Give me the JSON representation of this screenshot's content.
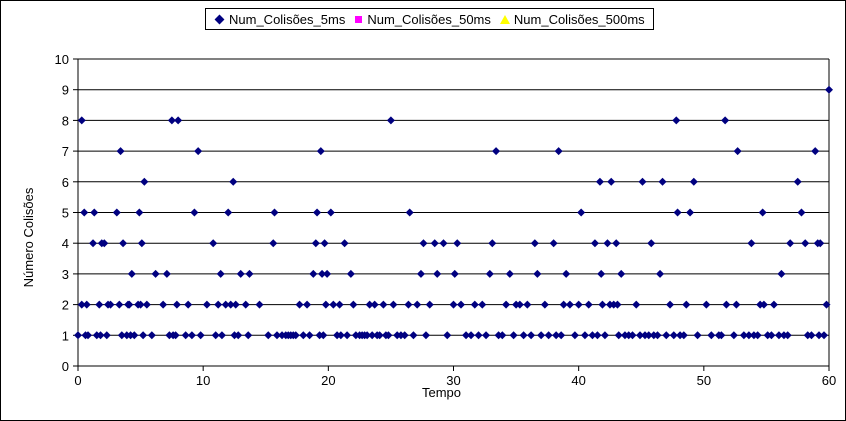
{
  "chart_data": {
    "type": "scatter",
    "title": "",
    "xlabel": "Tempo",
    "ylabel": "Número Colisões",
    "xlim": [
      0,
      60
    ],
    "ylim": [
      0,
      10
    ],
    "xticks": [
      0,
      10,
      20,
      30,
      40,
      50,
      60
    ],
    "yticks": [
      0,
      1,
      2,
      3,
      4,
      5,
      6,
      7,
      8,
      9,
      10
    ],
    "grid": "horizontal",
    "legend_position": "top",
    "series": [
      {
        "name": "Num_Colisões_5ms",
        "marker": "diamond",
        "color": "#000080",
        "points": [
          [
            0.0,
            1
          ],
          [
            0.3,
            8
          ],
          [
            0.3,
            2
          ],
          [
            0.5,
            5
          ],
          [
            0.6,
            1
          ],
          [
            0.7,
            2
          ],
          [
            0.8,
            1
          ],
          [
            1.2,
            4
          ],
          [
            1.3,
            5
          ],
          [
            1.5,
            1
          ],
          [
            1.7,
            2
          ],
          [
            1.8,
            1
          ],
          [
            1.9,
            4
          ],
          [
            2.1,
            4
          ],
          [
            2.3,
            1
          ],
          [
            2.4,
            2
          ],
          [
            2.6,
            2
          ],
          [
            3.1,
            5
          ],
          [
            3.3,
            2
          ],
          [
            3.4,
            7
          ],
          [
            3.5,
            1
          ],
          [
            3.6,
            4
          ],
          [
            3.9,
            1
          ],
          [
            4.0,
            2
          ],
          [
            4.1,
            2
          ],
          [
            4.2,
            1
          ],
          [
            4.3,
            3
          ],
          [
            4.5,
            1
          ],
          [
            4.8,
            2
          ],
          [
            4.9,
            5
          ],
          [
            5.0,
            2
          ],
          [
            5.1,
            4
          ],
          [
            5.2,
            1
          ],
          [
            5.3,
            6
          ],
          [
            5.5,
            2
          ],
          [
            5.9,
            1
          ],
          [
            6.2,
            3
          ],
          [
            6.8,
            2
          ],
          [
            7.1,
            3
          ],
          [
            7.3,
            1
          ],
          [
            7.5,
            8
          ],
          [
            7.6,
            1
          ],
          [
            7.8,
            1
          ],
          [
            7.9,
            2
          ],
          [
            8.0,
            8
          ],
          [
            8.6,
            1
          ],
          [
            8.8,
            2
          ],
          [
            9.1,
            1
          ],
          [
            9.3,
            5
          ],
          [
            9.6,
            7
          ],
          [
            9.8,
            1
          ],
          [
            10.3,
            2
          ],
          [
            10.8,
            4
          ],
          [
            11.0,
            1
          ],
          [
            11.2,
            2
          ],
          [
            11.4,
            3
          ],
          [
            11.5,
            1
          ],
          [
            11.8,
            2
          ],
          [
            12.0,
            5
          ],
          [
            12.2,
            2
          ],
          [
            12.4,
            6
          ],
          [
            12.5,
            1
          ],
          [
            12.6,
            2
          ],
          [
            12.8,
            1
          ],
          [
            13.0,
            3
          ],
          [
            13.4,
            2
          ],
          [
            13.6,
            1
          ],
          [
            13.7,
            3
          ],
          [
            14.5,
            2
          ],
          [
            15.2,
            1
          ],
          [
            15.6,
            4
          ],
          [
            15.7,
            5
          ],
          [
            15.9,
            1
          ],
          [
            16.3,
            1
          ],
          [
            16.6,
            1
          ],
          [
            16.8,
            1
          ],
          [
            17.0,
            1
          ],
          [
            17.2,
            1
          ],
          [
            17.4,
            1
          ],
          [
            17.7,
            2
          ],
          [
            18.0,
            1
          ],
          [
            18.3,
            2
          ],
          [
            18.5,
            1
          ],
          [
            18.8,
            3
          ],
          [
            19.0,
            4
          ],
          [
            19.1,
            5
          ],
          [
            19.3,
            1
          ],
          [
            19.4,
            7
          ],
          [
            19.5,
            3
          ],
          [
            19.6,
            1
          ],
          [
            19.7,
            4
          ],
          [
            19.8,
            2
          ],
          [
            19.9,
            3
          ],
          [
            20.2,
            5
          ],
          [
            20.4,
            2
          ],
          [
            20.7,
            1
          ],
          [
            20.9,
            2
          ],
          [
            21.0,
            1
          ],
          [
            21.3,
            4
          ],
          [
            21.5,
            1
          ],
          [
            21.8,
            3
          ],
          [
            22.0,
            2
          ],
          [
            22.2,
            1
          ],
          [
            22.5,
            1
          ],
          [
            22.7,
            1
          ],
          [
            22.9,
            1
          ],
          [
            23.1,
            1
          ],
          [
            23.3,
            2
          ],
          [
            23.5,
            1
          ],
          [
            23.7,
            2
          ],
          [
            23.9,
            1
          ],
          [
            24.1,
            1
          ],
          [
            24.4,
            2
          ],
          [
            24.6,
            1
          ],
          [
            24.8,
            1
          ],
          [
            25.0,
            8
          ],
          [
            25.2,
            2
          ],
          [
            25.5,
            1
          ],
          [
            25.8,
            1
          ],
          [
            26.1,
            1
          ],
          [
            26.4,
            2
          ],
          [
            26.5,
            5
          ],
          [
            26.8,
            1
          ],
          [
            27.1,
            2
          ],
          [
            27.4,
            3
          ],
          [
            27.6,
            4
          ],
          [
            27.8,
            1
          ],
          [
            28.1,
            2
          ],
          [
            28.5,
            4
          ],
          [
            28.7,
            3
          ],
          [
            29.2,
            4
          ],
          [
            29.5,
            1
          ],
          [
            30.0,
            2
          ],
          [
            30.1,
            3
          ],
          [
            30.3,
            4
          ],
          [
            30.6,
            2
          ],
          [
            31.0,
            1
          ],
          [
            31.4,
            1
          ],
          [
            31.7,
            2
          ],
          [
            32.0,
            1
          ],
          [
            32.3,
            2
          ],
          [
            32.6,
            1
          ],
          [
            32.9,
            3
          ],
          [
            33.1,
            4
          ],
          [
            33.4,
            7
          ],
          [
            33.6,
            1
          ],
          [
            33.9,
            1
          ],
          [
            34.2,
            2
          ],
          [
            34.5,
            3
          ],
          [
            34.8,
            1
          ],
          [
            35.0,
            2
          ],
          [
            35.3,
            2
          ],
          [
            35.6,
            1
          ],
          [
            35.9,
            2
          ],
          [
            36.2,
            1
          ],
          [
            36.5,
            4
          ],
          [
            36.7,
            3
          ],
          [
            37.0,
            1
          ],
          [
            37.3,
            2
          ],
          [
            37.6,
            1
          ],
          [
            38.0,
            4
          ],
          [
            38.2,
            1
          ],
          [
            38.4,
            7
          ],
          [
            38.6,
            1
          ],
          [
            38.8,
            2
          ],
          [
            39.0,
            3
          ],
          [
            39.3,
            2
          ],
          [
            39.7,
            1
          ],
          [
            40.0,
            2
          ],
          [
            40.2,
            5
          ],
          [
            40.5,
            1
          ],
          [
            40.8,
            2
          ],
          [
            41.1,
            1
          ],
          [
            41.3,
            4
          ],
          [
            41.5,
            1
          ],
          [
            41.7,
            6
          ],
          [
            41.8,
            3
          ],
          [
            41.9,
            2
          ],
          [
            42.1,
            1
          ],
          [
            42.3,
            4
          ],
          [
            42.5,
            2
          ],
          [
            42.6,
            6
          ],
          [
            42.8,
            2
          ],
          [
            43.0,
            4
          ],
          [
            43.1,
            2
          ],
          [
            43.2,
            1
          ],
          [
            43.4,
            3
          ],
          [
            43.7,
            1
          ],
          [
            44.0,
            1
          ],
          [
            44.3,
            1
          ],
          [
            44.6,
            2
          ],
          [
            44.9,
            1
          ],
          [
            45.1,
            6
          ],
          [
            45.3,
            1
          ],
          [
            45.6,
            1
          ],
          [
            45.8,
            4
          ],
          [
            46.0,
            1
          ],
          [
            46.3,
            1
          ],
          [
            46.5,
            3
          ],
          [
            46.7,
            6
          ],
          [
            47.0,
            1
          ],
          [
            47.3,
            2
          ],
          [
            47.6,
            1
          ],
          [
            47.8,
            8
          ],
          [
            47.9,
            5
          ],
          [
            48.1,
            1
          ],
          [
            48.4,
            1
          ],
          [
            48.6,
            2
          ],
          [
            48.9,
            5
          ],
          [
            49.2,
            6
          ],
          [
            49.5,
            1
          ],
          [
            50.2,
            2
          ],
          [
            50.6,
            1
          ],
          [
            51.2,
            1
          ],
          [
            51.4,
            1
          ],
          [
            51.7,
            8
          ],
          [
            51.8,
            2
          ],
          [
            52.4,
            1
          ],
          [
            52.6,
            2
          ],
          [
            52.7,
            7
          ],
          [
            53.2,
            1
          ],
          [
            53.6,
            1
          ],
          [
            53.8,
            4
          ],
          [
            54.0,
            1
          ],
          [
            54.3,
            1
          ],
          [
            54.5,
            2
          ],
          [
            54.7,
            5
          ],
          [
            54.8,
            2
          ],
          [
            55.1,
            1
          ],
          [
            55.4,
            1
          ],
          [
            55.6,
            2
          ],
          [
            56.0,
            1
          ],
          [
            56.2,
            3
          ],
          [
            56.4,
            1
          ],
          [
            56.7,
            1
          ],
          [
            56.9,
            4
          ],
          [
            57.5,
            6
          ],
          [
            57.8,
            5
          ],
          [
            58.1,
            4
          ],
          [
            58.3,
            1
          ],
          [
            58.6,
            1
          ],
          [
            58.9,
            7
          ],
          [
            59.1,
            4
          ],
          [
            59.2,
            1
          ],
          [
            59.3,
            4
          ],
          [
            59.6,
            1
          ],
          [
            59.8,
            2
          ],
          [
            60.0,
            9
          ]
        ]
      },
      {
        "name": "Num_Colisões_50ms",
        "marker": "square",
        "color": "#ff00ff",
        "points": []
      },
      {
        "name": "Num_Colisões_500ms",
        "marker": "triangle",
        "color": "#ffff00",
        "points": []
      }
    ]
  }
}
